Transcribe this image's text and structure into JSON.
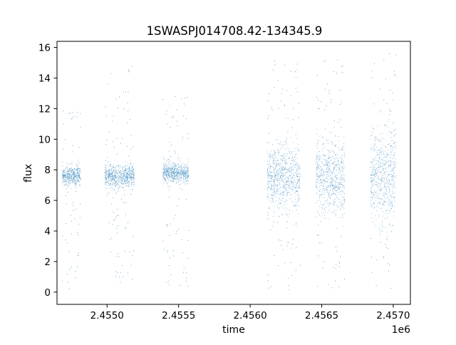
{
  "chart_data": {
    "type": "scatter",
    "title": "1SWASPJ014708.42-134345.9",
    "xlabel": "time",
    "ylabel": "flux",
    "x_offset_label": "1e6",
    "x_scale_factor": 1000000,
    "xlim": [
      2454650,
      2457120
    ],
    "ylim": [
      -0.8,
      16.4
    ],
    "x_ticks": [
      2455000,
      2455500,
      2456000,
      2456500,
      2457000
    ],
    "x_tick_labels": [
      "2.4550",
      "2.4555",
      "2.4560",
      "2.4565",
      "2.4570"
    ],
    "y_ticks": [
      0,
      2,
      4,
      6,
      8,
      10,
      12,
      14,
      16
    ],
    "y_tick_labels": [
      "0",
      "2",
      "4",
      "6",
      "8",
      "10",
      "12",
      "14",
      "16"
    ],
    "grid": false,
    "marker_color": "#1f77b4",
    "series": [
      {
        "observing_seasons": [
          {
            "x_start": 2454685,
            "x_end": 2454815,
            "core_center": 7.6,
            "core_halfwidth": 0.55,
            "scatter_min": 0.2,
            "scatter_max": 12.2
          },
          {
            "x_start": 2454985,
            "x_end": 2455190,
            "core_center": 7.6,
            "core_halfwidth": 0.6,
            "scatter_min": 0.5,
            "scatter_max": 15.0
          },
          {
            "x_start": 2455390,
            "x_end": 2455570,
            "core_center": 7.8,
            "core_halfwidth": 0.55,
            "scatter_min": 0.2,
            "scatter_max": 12.8
          },
          {
            "x_start": 2456120,
            "x_end": 2456350,
            "core_center": 7.5,
            "core_halfwidth": 1.7,
            "scatter_min": 0.0,
            "scatter_max": 15.5
          },
          {
            "x_start": 2456460,
            "x_end": 2456660,
            "core_center": 7.5,
            "core_halfwidth": 1.9,
            "scatter_min": 0.0,
            "scatter_max": 15.3
          },
          {
            "x_start": 2456840,
            "x_end": 2457020,
            "core_center": 7.6,
            "core_halfwidth": 2.4,
            "scatter_min": 0.0,
            "scatter_max": 15.6
          }
        ]
      }
    ]
  }
}
